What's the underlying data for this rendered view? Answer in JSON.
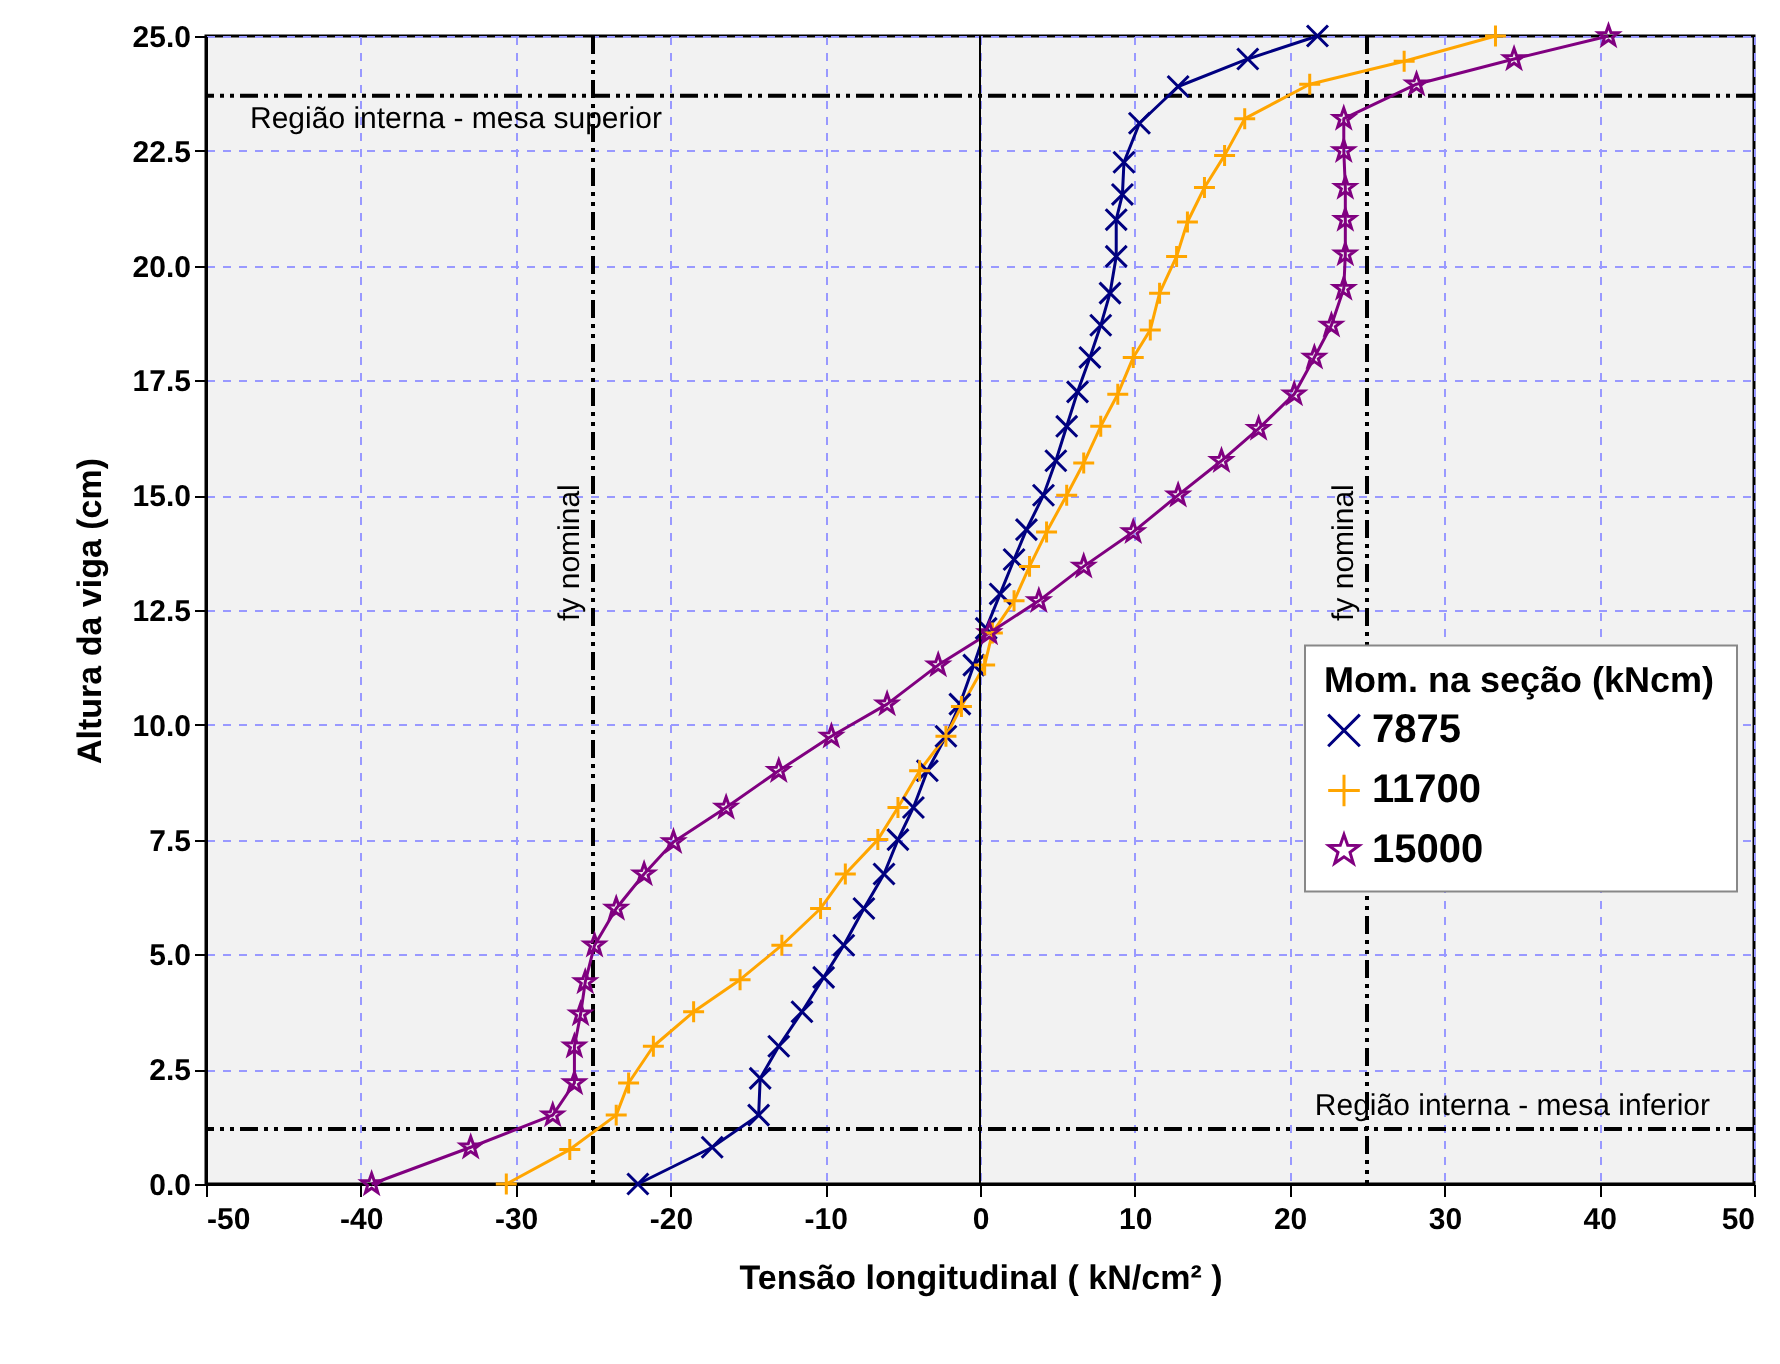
{
  "chart_data": {
    "type": "line",
    "xlabel": "Tensão longitudinal ( kN/cm² )",
    "ylabel": "Altura da viga (cm)",
    "legend_title": "Mom. na seção (kNcm)",
    "legend": "right",
    "grid": true,
    "line_style": "solid",
    "xlim": [
      -50,
      50
    ],
    "xticks": [
      -50,
      -40,
      -30,
      -20,
      -10,
      0,
      10,
      20,
      30,
      40,
      50
    ],
    "ylim": [
      0,
      25
    ],
    "yticks": [
      {
        "value": 0,
        "label": "0.0"
      },
      {
        "value": 2.5,
        "label": "2.5"
      },
      {
        "value": 5,
        "label": "5.0"
      },
      {
        "value": 7.5,
        "label": "7.5"
      },
      {
        "value": 10,
        "label": "10.0"
      },
      {
        "value": 12.5,
        "label": "12.5"
      },
      {
        "value": 15,
        "label": "15.0"
      },
      {
        "value": 17.5,
        "label": "17.5"
      },
      {
        "value": 20,
        "label": "20.0"
      },
      {
        "value": 22.5,
        "label": "22.5"
      },
      {
        "value": 25,
        "label": "25.0"
      }
    ],
    "series": [
      {
        "name": "7875",
        "color": "#000080",
        "marker": "cross",
        "x": [
          -22.1,
          -17.3,
          -14.3,
          -14.2,
          -13.0,
          -11.5,
          -10.1,
          -8.8,
          -7.5,
          -6.2,
          -5.3,
          -4.3,
          -3.4,
          -2.2,
          -1.3,
          -0.4,
          0.4,
          1.3,
          2.2,
          3.0,
          4.1,
          4.9,
          5.6,
          6.3,
          7.1,
          7.8,
          8.4,
          8.8,
          8.8,
          9.2,
          9.3,
          10.3,
          12.8,
          17.3,
          21.8
        ],
        "values": [
          0,
          0.8,
          1.5,
          2.3,
          3.0,
          3.75,
          4.5,
          5.2,
          6.0,
          6.75,
          7.5,
          8.2,
          9.0,
          9.75,
          10.45,
          11.3,
          12.1,
          12.85,
          13.6,
          14.25,
          15.0,
          15.75,
          16.5,
          17.25,
          18.0,
          18.7,
          19.4,
          20.2,
          21.0,
          21.55,
          22.25,
          23.1,
          23.9,
          24.5,
          25.0
        ]
      },
      {
        "name": "11700",
        "color": "#ffa500",
        "marker": "plus",
        "x": [
          -30.6,
          -26.5,
          -23.5,
          -22.7,
          -21.1,
          -18.5,
          -15.5,
          -12.8,
          -10.3,
          -8.7,
          -6.6,
          -5.3,
          -3.9,
          -2.2,
          -1.2,
          0.3,
          0.8,
          2.2,
          3.2,
          4.3,
          5.6,
          6.7,
          7.8,
          8.9,
          9.9,
          11.0,
          11.6,
          12.7,
          13.4,
          14.5,
          15.8,
          17.1,
          21.3,
          27.4,
          33.3
        ],
        "values": [
          0,
          0.75,
          1.5,
          2.2,
          3.0,
          3.75,
          4.45,
          5.2,
          6.0,
          6.75,
          7.5,
          8.2,
          9.0,
          9.75,
          10.4,
          11.3,
          12.0,
          12.7,
          13.45,
          14.2,
          15.0,
          15.7,
          16.5,
          17.2,
          18.0,
          18.6,
          19.4,
          20.2,
          20.95,
          21.7,
          22.4,
          23.2,
          23.95,
          24.45,
          25.0
        ]
      },
      {
        "name": "15000",
        "color": "#800080",
        "marker": "star",
        "x": [
          -39.3,
          -32.9,
          -27.6,
          -26.2,
          -26.2,
          -25.8,
          -25.5,
          -24.9,
          -23.5,
          -21.7,
          -19.8,
          -16.4,
          -13.0,
          -9.6,
          -6.0,
          -2.7,
          0.6,
          3.8,
          6.7,
          9.9,
          12.8,
          15.6,
          18.0,
          20.3,
          21.6,
          22.7,
          23.5,
          23.6,
          23.6,
          23.6,
          23.5,
          23.5,
          28.2,
          34.5,
          40.6
        ],
        "values": [
          0,
          0.8,
          1.5,
          2.2,
          3.0,
          3.7,
          4.4,
          5.2,
          6.0,
          6.75,
          7.45,
          8.2,
          9.0,
          9.75,
          10.45,
          11.3,
          12.0,
          12.7,
          13.45,
          14.2,
          15.0,
          15.75,
          16.45,
          17.2,
          18.0,
          18.7,
          19.5,
          20.25,
          21.0,
          21.7,
          22.5,
          23.2,
          23.95,
          24.5,
          25.0
        ]
      }
    ],
    "ref_lines": [
      {
        "axis": "y",
        "value": 23.7,
        "label": "Região interna - mesa superior",
        "color": "#000000",
        "line_style": "dashed"
      },
      {
        "axis": "y",
        "value": 1.2,
        "label": "Região interna - mesa inferior",
        "color": "#000000",
        "line_style": "dashed"
      },
      {
        "axis": "x",
        "value": -25,
        "label": "fy nominal",
        "color": "#000000",
        "line_style": "dashed"
      },
      {
        "axis": "x",
        "value": 25,
        "label": "fy nominal",
        "color": "#000000",
        "line_style": "dashed"
      }
    ]
  }
}
